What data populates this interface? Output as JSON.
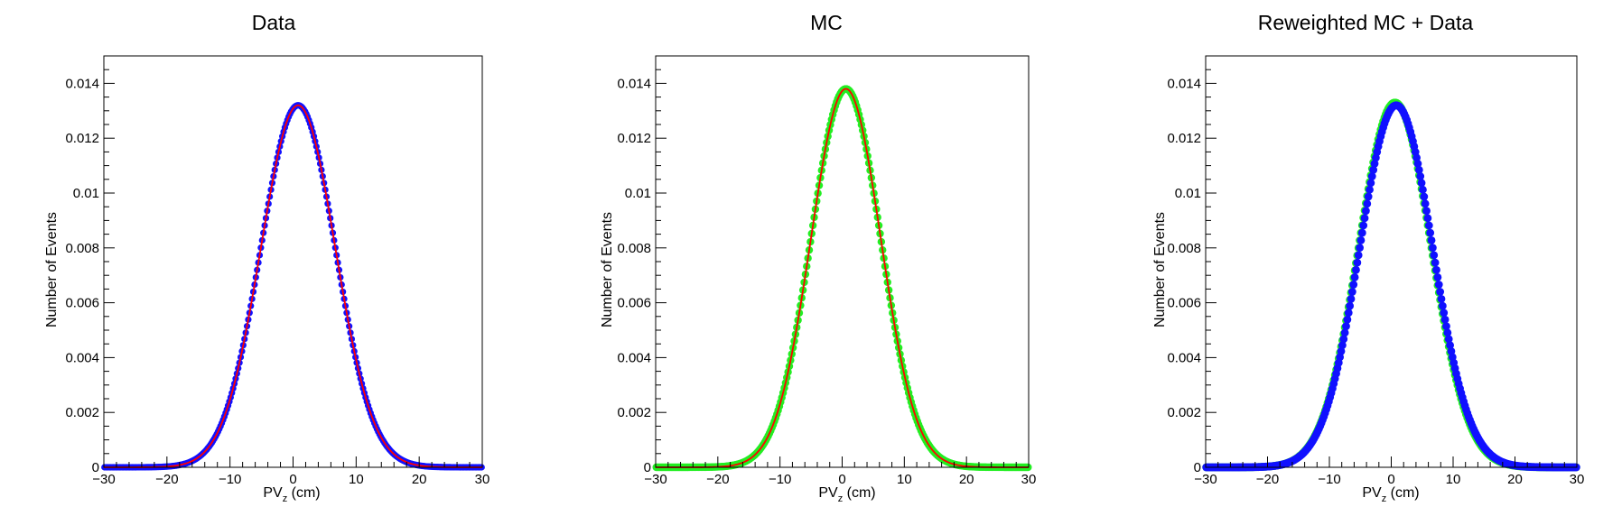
{
  "chart_data": [
    {
      "type": "scatter",
      "title": "Data",
      "xlabel": "PV",
      "xlabel_sub": "z",
      "xlabel_unit": " (cm)",
      "ylabel": "Number of Events",
      "xlim": [
        -30,
        30
      ],
      "ylim": [
        0,
        0.015
      ],
      "xticks": [
        "−30",
        "−20",
        "−10",
        "0",
        "10",
        "20",
        "30"
      ],
      "yticks": [
        "0",
        "0.002",
        "0.004",
        "0.006",
        "0.008",
        "0.01",
        "0.012",
        "0.014"
      ],
      "grid": false,
      "series": [
        {
          "kind": "markers",
          "color": "#1010ff",
          "model": {
            "amplitude": 0.0132,
            "mean": 0.8,
            "sigma": 5.9
          }
        },
        {
          "kind": "fit-line",
          "color": "#ff0000",
          "model": {
            "amplitude": 0.0132,
            "mean": 0.8,
            "sigma": 5.9
          }
        }
      ]
    },
    {
      "type": "scatter",
      "title": "MC",
      "xlabel": "PV",
      "xlabel_sub": "z",
      "xlabel_unit": " (cm)",
      "ylabel": "Number of Events",
      "xlim": [
        -30,
        30
      ],
      "ylim": [
        0,
        0.015
      ],
      "xticks": [
        "−30",
        "−20",
        "−10",
        "0",
        "10",
        "20",
        "30"
      ],
      "yticks": [
        "0",
        "0.002",
        "0.004",
        "0.006",
        "0.008",
        "0.01",
        "0.012",
        "0.014"
      ],
      "grid": false,
      "series": [
        {
          "kind": "markers",
          "color": "#22ee22",
          "model": {
            "amplitude": 0.0138,
            "mean": 0.6,
            "sigma": 5.6
          }
        },
        {
          "kind": "fit-line",
          "color": "#ff0000",
          "model": {
            "amplitude": 0.0138,
            "mean": 0.6,
            "sigma": 5.6
          }
        }
      ]
    },
    {
      "type": "scatter",
      "title": "Reweighted MC + Data",
      "xlabel": "PV",
      "xlabel_sub": "z",
      "xlabel_unit": " (cm)",
      "ylabel": "Number of Events",
      "xlim": [
        -30,
        30
      ],
      "ylim": [
        0,
        0.015
      ],
      "xticks": [
        "−30",
        "−20",
        "−10",
        "0",
        "10",
        "20",
        "30"
      ],
      "yticks": [
        "0",
        "0.002",
        "0.004",
        "0.006",
        "0.008",
        "0.01",
        "0.012",
        "0.014"
      ],
      "grid": false,
      "series": [
        {
          "kind": "markers",
          "color": "#22ee22",
          "model": {
            "amplitude": 0.0133,
            "mean": 0.6,
            "sigma": 5.85
          }
        },
        {
          "kind": "markers",
          "color": "#1010ff",
          "model": {
            "amplitude": 0.0132,
            "mean": 0.8,
            "sigma": 5.9
          }
        }
      ]
    }
  ]
}
